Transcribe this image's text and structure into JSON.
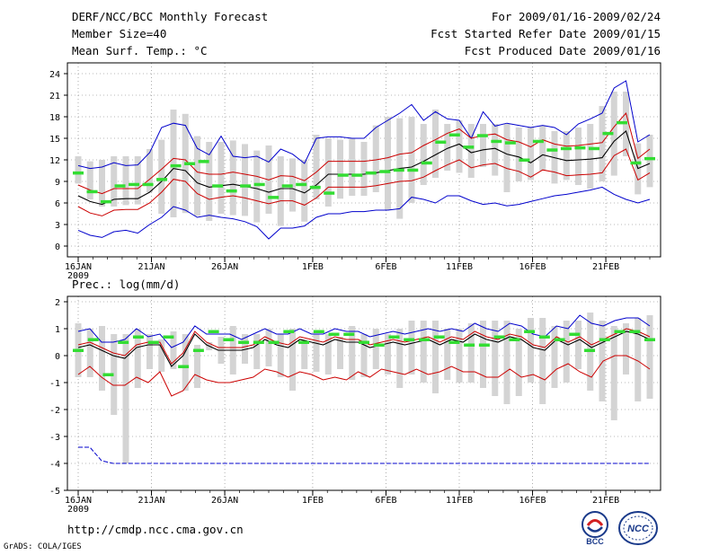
{
  "header": {
    "left": [
      "DERF/NCC/BCC Monthly Forecast",
      "Member Size=40",
      "Mean Surf. Temp.: °C"
    ],
    "right": [
      "For 2009/01/16-2009/02/24",
      "Fcst Started Refer Date 2009/01/15",
      "Fcst Produced Date 2009/01/16"
    ]
  },
  "footer": {
    "url": "http://cmdp.ncc.cma.gov.cn",
    "credit": "GrADS: COLA/IGES"
  },
  "logos": {
    "bcc": "BCC",
    "ncc": "NCC"
  },
  "colors": {
    "box": "#d4d4d4",
    "mean": "#000000",
    "spread": "#cc0000",
    "envelope": "#0000cc",
    "observed": "#33dd33"
  },
  "chart_data": [
    {
      "type": "line",
      "title": "Mean Surf. Temp.: °C",
      "xlabel_year": "2009",
      "x_tick_labels": [
        "16JAN",
        "21JAN",
        "26JAN",
        "1FEB",
        "6FEB",
        "11FEB",
        "16FEB",
        "21FEB"
      ],
      "x_tick_days": [
        0,
        5,
        10,
        16,
        21,
        26,
        31,
        36
      ],
      "y_ticks": [
        0,
        3,
        6,
        9,
        12,
        15,
        18,
        21,
        24
      ],
      "ylim": [
        -1.5,
        25.5
      ],
      "n_days": 40,
      "series": [
        {
          "name": "mean",
          "values": [
            7,
            6.2,
            5.8,
            6.5,
            6.6,
            6.6,
            7.5,
            9,
            10.8,
            10.5,
            8.8,
            8.2,
            8.4,
            8.6,
            8.3,
            8,
            7.5,
            8,
            8,
            7.4,
            8.5,
            10,
            10,
            10,
            10,
            10.2,
            10.5,
            10.8,
            11,
            11.8,
            12.7,
            13.6,
            14.2,
            13,
            13.4,
            13.6,
            12.8,
            12.4,
            11.6,
            12.7,
            12.3,
            11.9,
            12,
            12.1,
            12.3,
            14.6,
            16,
            10.8,
            11.5
          ]
        },
        {
          "name": "upper_red",
          "values": [
            8.5,
            7.8,
            7.3,
            8,
            8,
            8,
            9.3,
            10.7,
            12.2,
            12,
            10.3,
            10,
            10,
            10.3,
            10,
            9.7,
            9.2,
            9.8,
            9.7,
            9.1,
            10.3,
            11.8,
            11.8,
            11.8,
            11.8,
            12,
            12.3,
            12.8,
            13,
            14,
            14.8,
            15.7,
            16.3,
            15,
            15.4,
            15.6,
            14.8,
            14.5,
            13.8,
            14.8,
            14.2,
            13.9,
            14,
            14.2,
            14.4,
            16.6,
            18.5,
            12.2,
            13.5
          ]
        },
        {
          "name": "lower_red",
          "values": [
            5.5,
            4.6,
            4.2,
            5,
            5.1,
            5.1,
            6,
            7.5,
            9.3,
            9,
            7.3,
            6.5,
            6.8,
            7,
            6.7,
            6.3,
            5.9,
            6.3,
            6.3,
            5.7,
            6.7,
            8.2,
            8.2,
            8.2,
            8.2,
            8.4,
            8.7,
            9,
            9.1,
            9.6,
            10.5,
            11.3,
            12,
            10.9,
            11.3,
            11.5,
            10.8,
            10.4,
            9.6,
            10.6,
            10.3,
            9.8,
            9.9,
            10,
            10.2,
            12.6,
            13.5,
            9.2,
            10.2
          ]
        },
        {
          "name": "upper_blue",
          "values": [
            11.2,
            10.8,
            11,
            11.6,
            11.2,
            11.3,
            13,
            16.5,
            17.1,
            16.8,
            13.6,
            12.7,
            15.3,
            12.5,
            12.3,
            12.5,
            11.7,
            13.5,
            12.8,
            11.5,
            15,
            15.2,
            15.2,
            15,
            15,
            16.5,
            17.5,
            18.5,
            19.7,
            17.5,
            18.7,
            17.7,
            17.5,
            15,
            18.7,
            16.7,
            17.1,
            16.8,
            16.5,
            16.8,
            16.5,
            15.5,
            17,
            17.7,
            18.5,
            22,
            23,
            14.5,
            15.5
          ]
        },
        {
          "name": "lower_blue",
          "values": [
            2.2,
            1.5,
            1.2,
            2,
            2.2,
            1.8,
            3,
            4,
            5.5,
            5,
            4,
            4.3,
            4,
            3.8,
            3.4,
            2.7,
            1,
            2.5,
            2.5,
            2.8,
            4,
            4.5,
            4.5,
            4.8,
            4.8,
            5,
            5,
            5.2,
            6.8,
            6.5,
            6,
            7,
            7,
            6.3,
            5.8,
            6,
            5.6,
            5.8,
            6.2,
            6.6,
            7,
            7.2,
            7.5,
            7.8,
            8.2,
            7.2,
            6.5,
            6,
            6.5
          ]
        },
        {
          "name": "observed",
          "values": [
            10.2,
            7.6,
            6.2,
            8.4,
            8.6,
            8.6,
            9.3,
            11.2,
            11.5,
            11.8,
            8.4,
            7.7,
            8.4,
            8.6,
            6.8,
            8.4,
            8.6,
            8.2,
            7.4,
            9.9,
            9.9,
            10.2,
            10.4,
            10.6,
            10.6,
            11.6,
            14.5,
            15.5,
            13.8,
            15.4,
            14.6,
            14.4,
            12,
            14.6,
            13.4,
            13.6,
            13.7,
            13.6,
            15.7,
            17.2,
            11.6,
            12.2
          ]
        },
        {
          "name": "box_low",
          "values": [
            8.7,
            6.5,
            5.5,
            5.5,
            5.7,
            5.8,
            7.5,
            4.5,
            4,
            4.6,
            4.2,
            3.5,
            4.5,
            4.3,
            4.2,
            3.3,
            4.5,
            2.8,
            4.8,
            3.4,
            6.5,
            5.5,
            6.6,
            7,
            7,
            7.5,
            5,
            3.8,
            6,
            8.5,
            9.5,
            10.5,
            10.2,
            9.5,
            11,
            9.8,
            7.5,
            9,
            9.2,
            10.5,
            8.7,
            9.2,
            8.5,
            8,
            9,
            9.8,
            12.5,
            7.2,
            8.2
          ]
        },
        {
          "name": "box_high",
          "values": [
            12.5,
            11.8,
            12,
            12.5,
            12.5,
            12.5,
            13.5,
            14.8,
            19,
            18.4,
            15.3,
            14.5,
            14.5,
            14.7,
            14.2,
            13.3,
            14,
            12.5,
            12.2,
            12,
            15.5,
            15,
            14.8,
            15,
            14.5,
            16.8,
            18,
            17.8,
            18,
            17,
            19,
            17,
            17.5,
            17,
            17,
            17,
            17,
            16.5,
            16.6,
            16.8,
            16,
            16,
            16.5,
            17,
            19.5,
            21.5,
            21.5,
            14.3,
            15.5
          ]
        }
      ]
    },
    {
      "type": "line",
      "title": "Prec.: log(mm/d)",
      "xlabel_year": "2009",
      "x_tick_labels": [
        "16JAN",
        "21JAN",
        "26JAN",
        "1FEB",
        "6FEB",
        "11FEB",
        "16FEB",
        "21FEB"
      ],
      "x_tick_days": [
        0,
        5,
        10,
        16,
        21,
        26,
        31,
        36
      ],
      "y_ticks": [
        -5,
        -4,
        -3,
        -2,
        -1,
        0,
        1,
        2
      ],
      "ylim": [
        -5,
        2.2
      ],
      "n_days": 40,
      "series": [
        {
          "name": "mean",
          "values": [
            0.3,
            0.4,
            0.2,
            0,
            -0.1,
            0.3,
            0.4,
            0.4,
            -0.4,
            0,
            0.8,
            0.4,
            0.2,
            0.2,
            0.2,
            0.3,
            0.6,
            0.4,
            0.3,
            0.6,
            0.5,
            0.4,
            0.6,
            0.5,
            0.5,
            0.3,
            0.4,
            0.5,
            0.4,
            0.5,
            0.6,
            0.4,
            0.6,
            0.5,
            0.8,
            0.6,
            0.5,
            0.7,
            0.6,
            0.3,
            0.2,
            0.6,
            0.4,
            0.6,
            0.3,
            0.5,
            0.7,
            0.9,
            0.8,
            0.6
          ]
        },
        {
          "name": "upper_red",
          "values": [
            0.4,
            0.5,
            0.3,
            0.1,
            0,
            0.4,
            0.5,
            0.5,
            -0.3,
            0.1,
            0.9,
            0.5,
            0.3,
            0.3,
            0.3,
            0.4,
            0.7,
            0.5,
            0.4,
            0.7,
            0.6,
            0.5,
            0.7,
            0.6,
            0.6,
            0.4,
            0.5,
            0.6,
            0.5,
            0.6,
            0.7,
            0.5,
            0.7,
            0.6,
            0.9,
            0.7,
            0.6,
            0.8,
            0.7,
            0.4,
            0.3,
            0.7,
            0.5,
            0.7,
            0.4,
            0.6,
            0.8,
            1,
            0.9,
            0.7
          ]
        },
        {
          "name": "lower_red",
          "values": [
            -0.7,
            -0.4,
            -0.8,
            -1.1,
            -1.1,
            -0.8,
            -1,
            -0.6,
            -1.5,
            -1.3,
            -0.7,
            -0.9,
            -1,
            -1,
            -0.9,
            -0.8,
            -0.5,
            -0.6,
            -0.8,
            -0.6,
            -0.7,
            -0.9,
            -0.8,
            -0.9,
            -0.6,
            -0.8,
            -0.5,
            -0.6,
            -0.7,
            -0.5,
            -0.7,
            -0.6,
            -0.4,
            -0.6,
            -0.6,
            -0.8,
            -0.8,
            -0.5,
            -0.8,
            -0.7,
            -0.9,
            -0.5,
            -0.3,
            -0.6,
            -0.8,
            -0.2,
            0,
            0,
            -0.2,
            -0.5
          ]
        },
        {
          "name": "upper_blue",
          "values": [
            0.9,
            1,
            0.5,
            0.5,
            0.6,
            1,
            0.7,
            0.8,
            0.3,
            0.5,
            1.1,
            0.8,
            0.8,
            0.8,
            0.6,
            0.8,
            1,
            0.8,
            0.8,
            1,
            0.8,
            0.8,
            1,
            0.9,
            0.9,
            0.7,
            0.8,
            0.9,
            0.8,
            0.9,
            1,
            0.9,
            1,
            0.9,
            1.2,
            1,
            0.9,
            1.2,
            1.1,
            0.8,
            0.7,
            1.1,
            1,
            1.5,
            1.2,
            1.1,
            1.3,
            1.4,
            1.4,
            1.1
          ]
        },
        {
          "name": "lower_blue",
          "values": [
            -3.4,
            -3.4,
            -3.9,
            -4,
            -4,
            -4,
            -4,
            -4,
            -4,
            -4,
            -4,
            -4,
            -4,
            -4,
            -4,
            -4,
            -4,
            -4,
            -4,
            -4,
            -4,
            -4,
            -4,
            -4,
            -4,
            -4,
            -4,
            -4,
            -4,
            -4,
            -4,
            -4,
            -4,
            -4,
            -4,
            -4,
            -4,
            -4,
            -4,
            -4,
            -4,
            -4,
            -4,
            -4,
            -4,
            -4,
            -4,
            -4,
            -4,
            -4
          ]
        },
        {
          "name": "observed",
          "values": [
            0.2,
            0.6,
            -0.7,
            0.5,
            0.7,
            0.5,
            0.7,
            -0.4,
            0.2,
            0.9,
            0.6,
            0.5,
            0.5,
            0.5,
            0.9,
            0.5,
            0.9,
            0.8,
            0.8,
            0.5,
            0.4,
            0.7,
            0.6,
            0.6,
            0.7,
            0.5,
            0.4,
            0.4,
            0.7,
            0.6,
            0.9,
            0.7,
            0.6,
            0.8,
            0.2,
            0.6,
            0.9,
            0.9,
            0.6
          ]
        },
        {
          "name": "box_low",
          "values": [
            -0.8,
            -0.8,
            -1.3,
            -2.2,
            -4,
            -1.2,
            -0.5,
            -0.6,
            -0.5,
            -1.3,
            -1.2,
            0.2,
            -0.3,
            -0.7,
            -0.3,
            -0.5,
            -0.4,
            -0.8,
            -1.3,
            -0.5,
            -0.6,
            -0.7,
            -0.5,
            -0.9,
            -0.8,
            -0.5,
            -0.7,
            -1.2,
            -0.7,
            -1,
            -1.4,
            -0.9,
            -1,
            -1,
            -1.2,
            -1.5,
            -1.8,
            -1.5,
            -1,
            -1.8,
            -1.2,
            -1,
            -0.5,
            -1.3,
            -1.7,
            -2.4,
            -0.7,
            -1.7,
            -1.6
          ]
        },
        {
          "name": "box_high",
          "values": [
            1.2,
            1,
            1.1,
            0.8,
            0.8,
            1,
            0.8,
            0.6,
            0.9,
            0.8,
            0.4,
            0.5,
            0.7,
            1.1,
            0.8,
            0.8,
            1,
            0.8,
            1,
            0.6,
            0.8,
            0.8,
            0.7,
            1.1,
            0.8,
            1,
            0.8,
            1,
            1.3,
            1.3,
            1.3,
            1,
            1,
            1.2,
            1.3,
            1.3,
            1.3,
            1,
            1.4,
            1.4,
            1.1,
            1.3,
            1.3,
            1.6,
            1.3,
            1.1,
            1.2,
            1.4,
            1.5,
            1.2
          ]
        }
      ]
    }
  ]
}
